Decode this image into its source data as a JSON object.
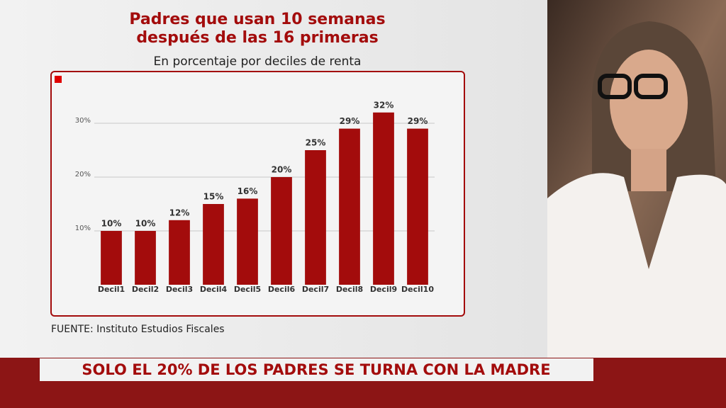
{
  "chart_data": {
    "type": "bar",
    "title": [
      "Padres que usan 10 semanas",
      "después de las 16 primeras"
    ],
    "subtitle": "En porcentaje por deciles de renta",
    "categories": [
      "Decil1",
      "Decil2",
      "Decil3",
      "Decil4",
      "Decil5",
      "Decil6",
      "Decil7",
      "Decil8",
      "Decil9",
      "Decil10"
    ],
    "values": [
      10,
      10,
      12,
      15,
      16,
      20,
      25,
      29,
      32,
      29
    ],
    "value_labels": [
      "10%",
      "10%",
      "12%",
      "15%",
      "16%",
      "20%",
      "25%",
      "29%",
      "32%",
      "29%"
    ],
    "color": "#a30c0c",
    "ylim": [
      0,
      35
    ],
    "yticks": [
      {
        "value": 10,
        "label": "10%"
      },
      {
        "value": 20,
        "label": "20%"
      },
      {
        "value": 30,
        "label": "30%"
      }
    ],
    "grid": true,
    "source": "FUENTE: Instituto Estudios Fiscales"
  },
  "banner": "SOLO EL 20% DE LOS PADRES SE TURNA CON LA MADRE"
}
